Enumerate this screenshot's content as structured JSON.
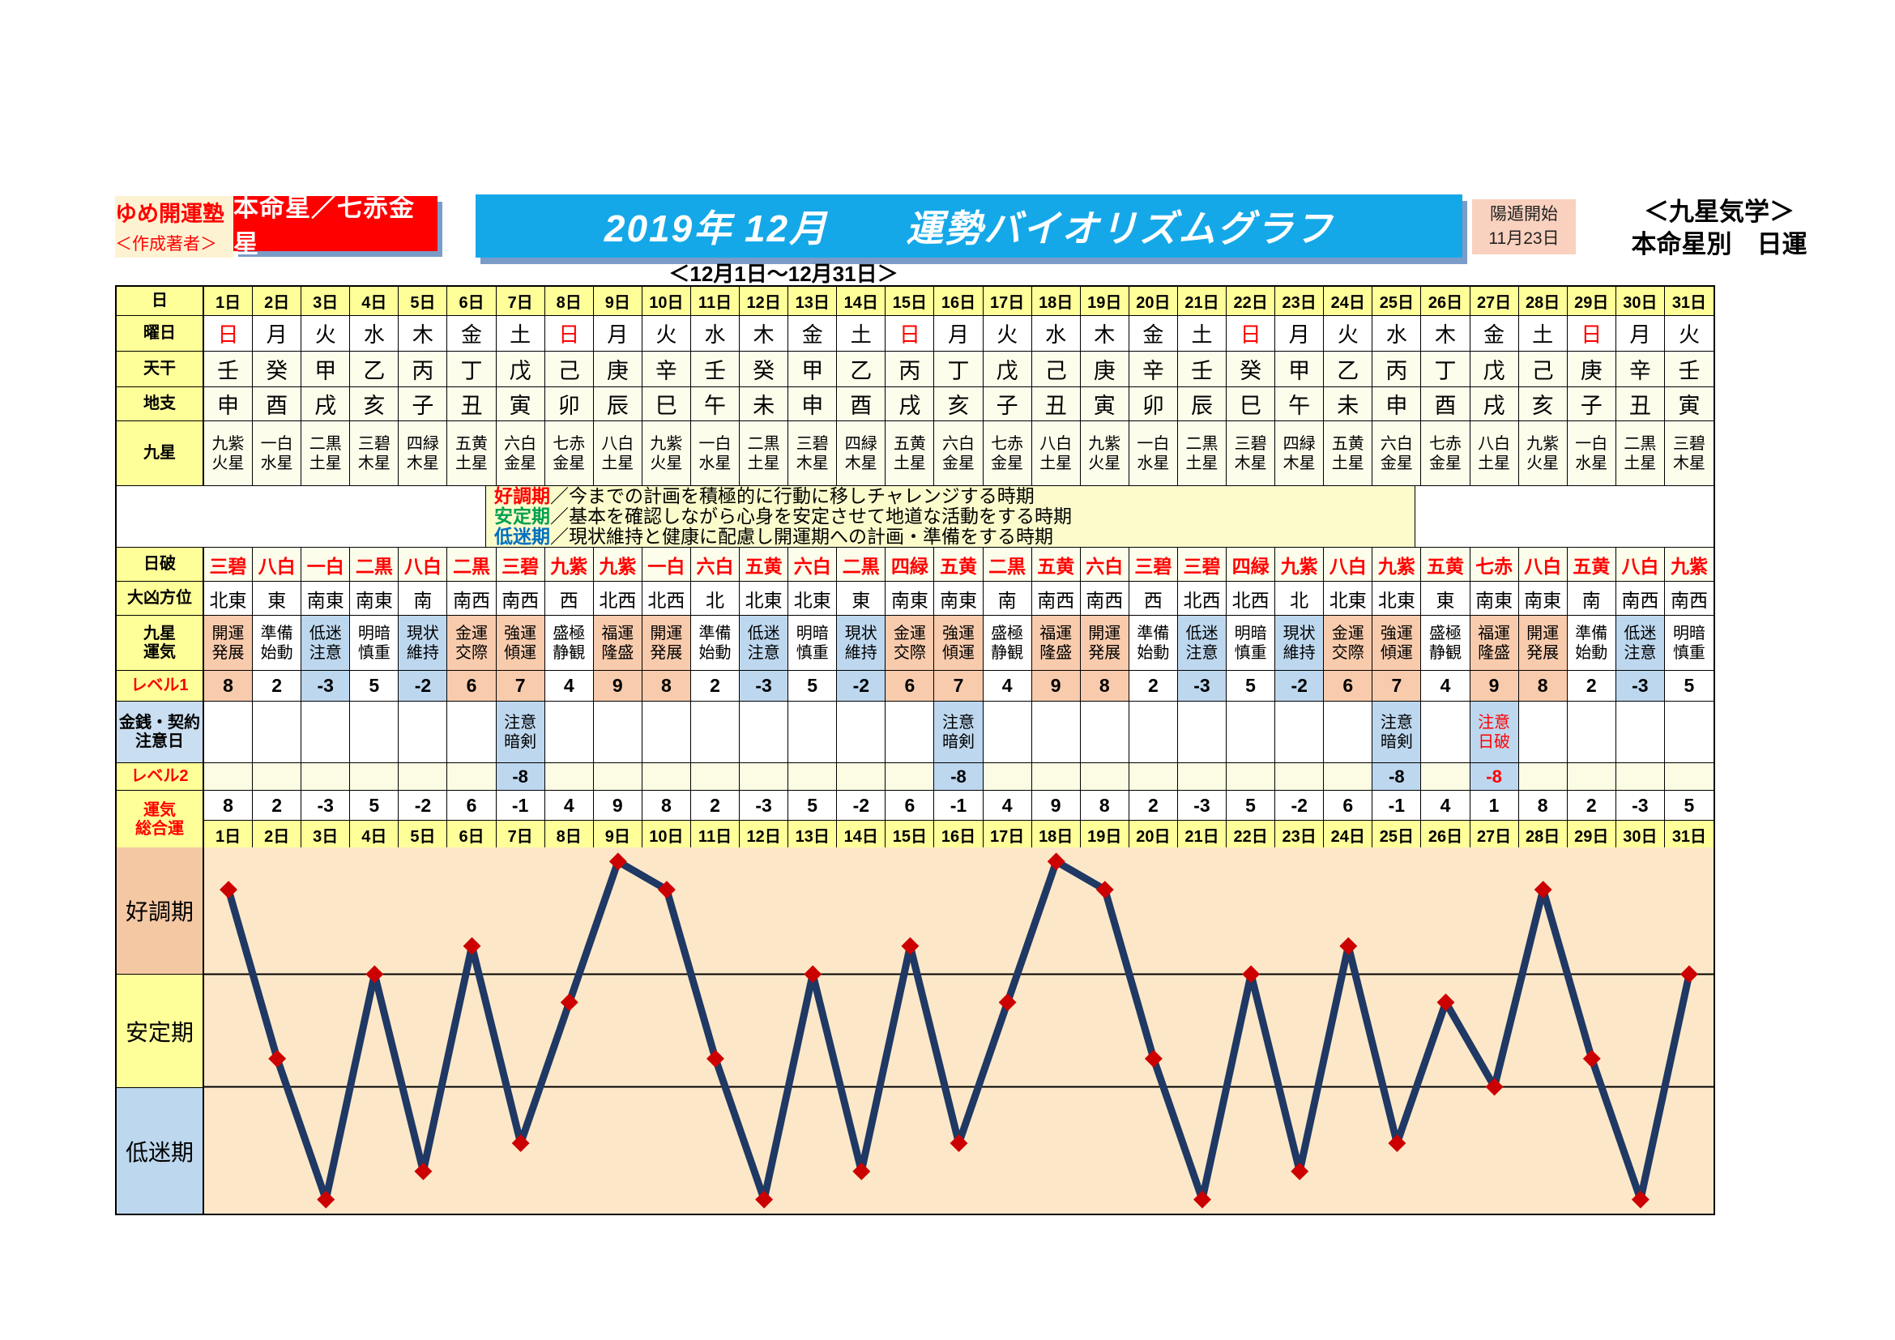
{
  "header": {
    "author_box": {
      "line1": "ゆめ開運塾",
      "line2": "＜作成著者＞"
    },
    "honmeisei_label": "本命星／七赤金星",
    "title": "2019年 12月　　運勢バイオリズムグラフ",
    "youton": {
      "line1": "陽遁開始",
      "line2": "11月23日"
    },
    "right_title": {
      "line1": "＜九星気学＞",
      "line2": "本命星別　日運"
    },
    "subtitle": "＜12月1日～12月31日＞"
  },
  "row_labels": {
    "day": "日",
    "weekday": "曜日",
    "tenkan": "天干",
    "chishi": "地支",
    "kyusei": "九星",
    "nippa": "日破",
    "daikyo": "大凶方位",
    "unki1": "九星",
    "unki2": "運気",
    "level1": "レベル1",
    "money1": "金銭・契約",
    "money2": "注意日",
    "level2": "レベル2",
    "total1": "運気",
    "total2": "総合運"
  },
  "legend": [
    {
      "term": "好調期",
      "cls": "term-good",
      "desc": "／今までの計画を積極的に行動に移しチャレンジする時期"
    },
    {
      "term": "安定期",
      "cls": "term-stable",
      "desc": "／基本を確認しながら心身を安定させて地道な活動をする時期"
    },
    {
      "term": "低迷期",
      "cls": "term-low",
      "desc": "／現状維持と健康に配慮し開運期への計画・準備をする時期"
    }
  ],
  "days": [
    {
      "d": "1日",
      "w": "日",
      "w_red": true,
      "tk": "壬",
      "cs": "申",
      "k1": "九紫",
      "k2": "火星",
      "hp": "三碧",
      "dir": "北東",
      "u1": "開運",
      "u2": "発展",
      "tone": "up",
      "lv1": "8",
      "note1": "",
      "note2": "",
      "note_bg": false,
      "note_red": false,
      "lv2": "",
      "lv2_red": false,
      "total": "8"
    },
    {
      "d": "2日",
      "w": "月",
      "w_red": false,
      "tk": "癸",
      "cs": "酉",
      "k1": "一白",
      "k2": "水星",
      "hp": "八白",
      "dir": "東",
      "u1": "準備",
      "u2": "始動",
      "tone": "mid",
      "lv1": "2",
      "note1": "",
      "note2": "",
      "note_bg": false,
      "note_red": false,
      "lv2": "",
      "lv2_red": false,
      "total": "2"
    },
    {
      "d": "3日",
      "w": "火",
      "w_red": false,
      "tk": "甲",
      "cs": "戌",
      "k1": "二黒",
      "k2": "土星",
      "hp": "一白",
      "dir": "南東",
      "u1": "低迷",
      "u2": "注意",
      "tone": "down",
      "lv1": "-3",
      "note1": "",
      "note2": "",
      "note_bg": false,
      "note_red": false,
      "lv2": "",
      "lv2_red": false,
      "total": "-3"
    },
    {
      "d": "4日",
      "w": "水",
      "w_red": false,
      "tk": "乙",
      "cs": "亥",
      "k1": "三碧",
      "k2": "木星",
      "hp": "二黒",
      "dir": "南東",
      "u1": "明暗",
      "u2": "慎重",
      "tone": "mid",
      "lv1": "5",
      "note1": "",
      "note2": "",
      "note_bg": false,
      "note_red": false,
      "lv2": "",
      "lv2_red": false,
      "total": "5"
    },
    {
      "d": "5日",
      "w": "木",
      "w_red": false,
      "tk": "丙",
      "cs": "子",
      "k1": "四緑",
      "k2": "木星",
      "hp": "八白",
      "dir": "南",
      "u1": "現状",
      "u2": "維持",
      "tone": "down",
      "lv1": "-2",
      "note1": "",
      "note2": "",
      "note_bg": false,
      "note_red": false,
      "lv2": "",
      "lv2_red": false,
      "total": "-2"
    },
    {
      "d": "6日",
      "w": "金",
      "w_red": false,
      "tk": "丁",
      "cs": "丑",
      "k1": "五黄",
      "k2": "土星",
      "hp": "二黒",
      "dir": "南西",
      "u1": "金運",
      "u2": "交際",
      "tone": "up",
      "lv1": "6",
      "note1": "",
      "note2": "",
      "note_bg": false,
      "note_red": false,
      "lv2": "",
      "lv2_red": false,
      "total": "6"
    },
    {
      "d": "7日",
      "w": "土",
      "w_red": false,
      "tk": "戊",
      "cs": "寅",
      "k1": "六白",
      "k2": "金星",
      "hp": "三碧",
      "dir": "南西",
      "u1": "強運",
      "u2": "傾運",
      "tone": "up",
      "lv1": "7",
      "note1": "注意",
      "note2": "暗剣",
      "note_bg": true,
      "note_red": false,
      "lv2": "-8",
      "lv2_red": false,
      "total": "-1"
    },
    {
      "d": "8日",
      "w": "日",
      "w_red": true,
      "tk": "己",
      "cs": "卯",
      "k1": "七赤",
      "k2": "金星",
      "hp": "九紫",
      "dir": "西",
      "u1": "盛極",
      "u2": "静観",
      "tone": "mid",
      "lv1": "4",
      "note1": "",
      "note2": "",
      "note_bg": false,
      "note_red": false,
      "lv2": "",
      "lv2_red": false,
      "total": "4"
    },
    {
      "d": "9日",
      "w": "月",
      "w_red": false,
      "tk": "庚",
      "cs": "辰",
      "k1": "八白",
      "k2": "土星",
      "hp": "九紫",
      "dir": "北西",
      "u1": "福運",
      "u2": "隆盛",
      "tone": "up",
      "lv1": "9",
      "note1": "",
      "note2": "",
      "note_bg": false,
      "note_red": false,
      "lv2": "",
      "lv2_red": false,
      "total": "9"
    },
    {
      "d": "10日",
      "w": "火",
      "w_red": false,
      "tk": "辛",
      "cs": "巳",
      "k1": "九紫",
      "k2": "火星",
      "hp": "一白",
      "dir": "北西",
      "u1": "開運",
      "u2": "発展",
      "tone": "up",
      "lv1": "8",
      "note1": "",
      "note2": "",
      "note_bg": false,
      "note_red": false,
      "lv2": "",
      "lv2_red": false,
      "total": "8"
    },
    {
      "d": "11日",
      "w": "水",
      "w_red": false,
      "tk": "壬",
      "cs": "午",
      "k1": "一白",
      "k2": "水星",
      "hp": "六白",
      "dir": "北",
      "u1": "準備",
      "u2": "始動",
      "tone": "mid",
      "lv1": "2",
      "note1": "",
      "note2": "",
      "note_bg": false,
      "note_red": false,
      "lv2": "",
      "lv2_red": false,
      "total": "2"
    },
    {
      "d": "12日",
      "w": "木",
      "w_red": false,
      "tk": "癸",
      "cs": "未",
      "k1": "二黒",
      "k2": "土星",
      "hp": "五黄",
      "dir": "北東",
      "u1": "低迷",
      "u2": "注意",
      "tone": "down",
      "lv1": "-3",
      "note1": "",
      "note2": "",
      "note_bg": false,
      "note_red": false,
      "lv2": "",
      "lv2_red": false,
      "total": "-3"
    },
    {
      "d": "13日",
      "w": "金",
      "w_red": false,
      "tk": "甲",
      "cs": "申",
      "k1": "三碧",
      "k2": "木星",
      "hp": "六白",
      "dir": "北東",
      "u1": "明暗",
      "u2": "慎重",
      "tone": "mid",
      "lv1": "5",
      "note1": "",
      "note2": "",
      "note_bg": false,
      "note_red": false,
      "lv2": "",
      "lv2_red": false,
      "total": "5"
    },
    {
      "d": "14日",
      "w": "土",
      "w_red": false,
      "tk": "乙",
      "cs": "酉",
      "k1": "四緑",
      "k2": "木星",
      "hp": "二黒",
      "dir": "東",
      "u1": "現状",
      "u2": "維持",
      "tone": "down",
      "lv1": "-2",
      "note1": "",
      "note2": "",
      "note_bg": false,
      "note_red": false,
      "lv2": "",
      "lv2_red": false,
      "total": "-2"
    },
    {
      "d": "15日",
      "w": "日",
      "w_red": true,
      "tk": "丙",
      "cs": "戌",
      "k1": "五黄",
      "k2": "土星",
      "hp": "四緑",
      "dir": "南東",
      "u1": "金運",
      "u2": "交際",
      "tone": "up",
      "lv1": "6",
      "note1": "",
      "note2": "",
      "note_bg": false,
      "note_red": false,
      "lv2": "",
      "lv2_red": false,
      "total": "6"
    },
    {
      "d": "16日",
      "w": "月",
      "w_red": false,
      "tk": "丁",
      "cs": "亥",
      "k1": "六白",
      "k2": "金星",
      "hp": "五黄",
      "dir": "南東",
      "u1": "強運",
      "u2": "傾運",
      "tone": "up",
      "lv1": "7",
      "note1": "注意",
      "note2": "暗剣",
      "note_bg": true,
      "note_red": false,
      "lv2": "-8",
      "lv2_red": false,
      "total": "-1"
    },
    {
      "d": "17日",
      "w": "火",
      "w_red": false,
      "tk": "戊",
      "cs": "子",
      "k1": "七赤",
      "k2": "金星",
      "hp": "二黒",
      "dir": "南",
      "u1": "盛極",
      "u2": "静観",
      "tone": "mid",
      "lv1": "4",
      "note1": "",
      "note2": "",
      "note_bg": false,
      "note_red": false,
      "lv2": "",
      "lv2_red": false,
      "total": "4"
    },
    {
      "d": "18日",
      "w": "水",
      "w_red": false,
      "tk": "己",
      "cs": "丑",
      "k1": "八白",
      "k2": "土星",
      "hp": "五黄",
      "dir": "南西",
      "u1": "福運",
      "u2": "隆盛",
      "tone": "up",
      "lv1": "9",
      "note1": "",
      "note2": "",
      "note_bg": false,
      "note_red": false,
      "lv2": "",
      "lv2_red": false,
      "total": "9"
    },
    {
      "d": "19日",
      "w": "木",
      "w_red": false,
      "tk": "庚",
      "cs": "寅",
      "k1": "九紫",
      "k2": "火星",
      "hp": "六白",
      "dir": "南西",
      "u1": "開運",
      "u2": "発展",
      "tone": "up",
      "lv1": "8",
      "note1": "",
      "note2": "",
      "note_bg": false,
      "note_red": false,
      "lv2": "",
      "lv2_red": false,
      "total": "8"
    },
    {
      "d": "20日",
      "w": "金",
      "w_red": false,
      "tk": "辛",
      "cs": "卯",
      "k1": "一白",
      "k2": "水星",
      "hp": "三碧",
      "dir": "西",
      "u1": "準備",
      "u2": "始動",
      "tone": "mid",
      "lv1": "2",
      "note1": "",
      "note2": "",
      "note_bg": false,
      "note_red": false,
      "lv2": "",
      "lv2_red": false,
      "total": "2"
    },
    {
      "d": "21日",
      "w": "土",
      "w_red": false,
      "tk": "壬",
      "cs": "辰",
      "k1": "二黒",
      "k2": "土星",
      "hp": "三碧",
      "dir": "北西",
      "u1": "低迷",
      "u2": "注意",
      "tone": "down",
      "lv1": "-3",
      "note1": "",
      "note2": "",
      "note_bg": false,
      "note_red": false,
      "lv2": "",
      "lv2_red": false,
      "total": "-3"
    },
    {
      "d": "22日",
      "w": "日",
      "w_red": true,
      "tk": "癸",
      "cs": "巳",
      "k1": "三碧",
      "k2": "木星",
      "hp": "四緑",
      "dir": "北西",
      "u1": "明暗",
      "u2": "慎重",
      "tone": "mid",
      "lv1": "5",
      "note1": "",
      "note2": "",
      "note_bg": false,
      "note_red": false,
      "lv2": "",
      "lv2_red": false,
      "total": "5"
    },
    {
      "d": "23日",
      "w": "月",
      "w_red": false,
      "tk": "甲",
      "cs": "午",
      "k1": "四緑",
      "k2": "木星",
      "hp": "九紫",
      "dir": "北",
      "u1": "現状",
      "u2": "維持",
      "tone": "down",
      "lv1": "-2",
      "note1": "",
      "note2": "",
      "note_bg": false,
      "note_red": false,
      "lv2": "",
      "lv2_red": false,
      "total": "-2"
    },
    {
      "d": "24日",
      "w": "火",
      "w_red": false,
      "tk": "乙",
      "cs": "未",
      "k1": "五黄",
      "k2": "土星",
      "hp": "八白",
      "dir": "北東",
      "u1": "金運",
      "u2": "交際",
      "tone": "up",
      "lv1": "6",
      "note1": "",
      "note2": "",
      "note_bg": false,
      "note_red": false,
      "lv2": "",
      "lv2_red": false,
      "total": "6"
    },
    {
      "d": "25日",
      "w": "水",
      "w_red": false,
      "tk": "丙",
      "cs": "申",
      "k1": "六白",
      "k2": "金星",
      "hp": "九紫",
      "dir": "北東",
      "u1": "強運",
      "u2": "傾運",
      "tone": "up",
      "lv1": "7",
      "note1": "注意",
      "note2": "暗剣",
      "note_bg": true,
      "note_red": false,
      "lv2": "-8",
      "lv2_red": false,
      "total": "-1"
    },
    {
      "d": "26日",
      "w": "木",
      "w_red": false,
      "tk": "丁",
      "cs": "酉",
      "k1": "七赤",
      "k2": "金星",
      "hp": "五黄",
      "dir": "東",
      "u1": "盛極",
      "u2": "静観",
      "tone": "mid",
      "lv1": "4",
      "note1": "",
      "note2": "",
      "note_bg": false,
      "note_red": false,
      "lv2": "",
      "lv2_red": false,
      "total": "4"
    },
    {
      "d": "27日",
      "w": "金",
      "w_red": false,
      "tk": "戊",
      "cs": "戌",
      "k1": "八白",
      "k2": "土星",
      "hp": "七赤",
      "dir": "南東",
      "u1": "福運",
      "u2": "隆盛",
      "tone": "up",
      "lv1": "9",
      "note1": "注意",
      "note2": "日破",
      "note_bg": true,
      "note_red": true,
      "lv2": "-8",
      "lv2_red": true,
      "total": "1"
    },
    {
      "d": "28日",
      "w": "土",
      "w_red": false,
      "tk": "己",
      "cs": "亥",
      "k1": "九紫",
      "k2": "火星",
      "hp": "八白",
      "dir": "南東",
      "u1": "開運",
      "u2": "発展",
      "tone": "up",
      "lv1": "8",
      "note1": "",
      "note2": "",
      "note_bg": false,
      "note_red": false,
      "lv2": "",
      "lv2_red": false,
      "total": "8"
    },
    {
      "d": "29日",
      "w": "日",
      "w_red": true,
      "tk": "庚",
      "cs": "子",
      "k1": "一白",
      "k2": "水星",
      "hp": "五黄",
      "dir": "南",
      "u1": "準備",
      "u2": "始動",
      "tone": "mid",
      "lv1": "2",
      "note1": "",
      "note2": "",
      "note_bg": false,
      "note_red": false,
      "lv2": "",
      "lv2_red": false,
      "total": "2"
    },
    {
      "d": "30日",
      "w": "月",
      "w_red": false,
      "tk": "辛",
      "cs": "丑",
      "k1": "二黒",
      "k2": "土星",
      "hp": "八白",
      "dir": "南西",
      "u1": "低迷",
      "u2": "注意",
      "tone": "down",
      "lv1": "-3",
      "note1": "",
      "note2": "",
      "note_bg": false,
      "note_red": false,
      "lv2": "",
      "lv2_red": false,
      "total": "-3"
    },
    {
      "d": "31日",
      "w": "火",
      "w_red": false,
      "tk": "壬",
      "cs": "寅",
      "k1": "三碧",
      "k2": "木星",
      "hp": "九紫",
      "dir": "南西",
      "u1": "明暗",
      "u2": "慎重",
      "tone": "mid",
      "lv1": "5",
      "note1": "",
      "note2": "",
      "note_bg": false,
      "note_red": false,
      "lv2": "",
      "lv2_red": false,
      "total": "5"
    }
  ],
  "chart_data": {
    "type": "line",
    "title": "運勢バイオリズムグラフ",
    "x_labels": [
      "1日",
      "2日",
      "3日",
      "4日",
      "5日",
      "6日",
      "7日",
      "8日",
      "9日",
      "10日",
      "11日",
      "12日",
      "13日",
      "14日",
      "15日",
      "16日",
      "17日",
      "18日",
      "19日",
      "20日",
      "21日",
      "22日",
      "23日",
      "24日",
      "25日",
      "26日",
      "27日",
      "28日",
      "29日",
      "30日",
      "31日"
    ],
    "values": [
      8,
      2,
      -3,
      5,
      -2,
      6,
      -1,
      4,
      9,
      8,
      2,
      -3,
      5,
      -2,
      6,
      -1,
      4,
      9,
      8,
      2,
      -3,
      5,
      -2,
      6,
      -1,
      4,
      1,
      8,
      2,
      -3,
      5
    ],
    "ylim": [
      -3.5,
      9.5
    ],
    "band_boundaries": [
      5,
      1
    ],
    "bands": [
      {
        "label": "好調期",
        "color": "#F5C8A4"
      },
      {
        "label": "安定期",
        "color": "#FFFF99"
      },
      {
        "label": "低迷期",
        "color": "#BDD7EE"
      }
    ],
    "grid": false,
    "line_color": "#1F3864",
    "marker_color": "#CC0000",
    "plot_bg": "#FCE8C8"
  }
}
